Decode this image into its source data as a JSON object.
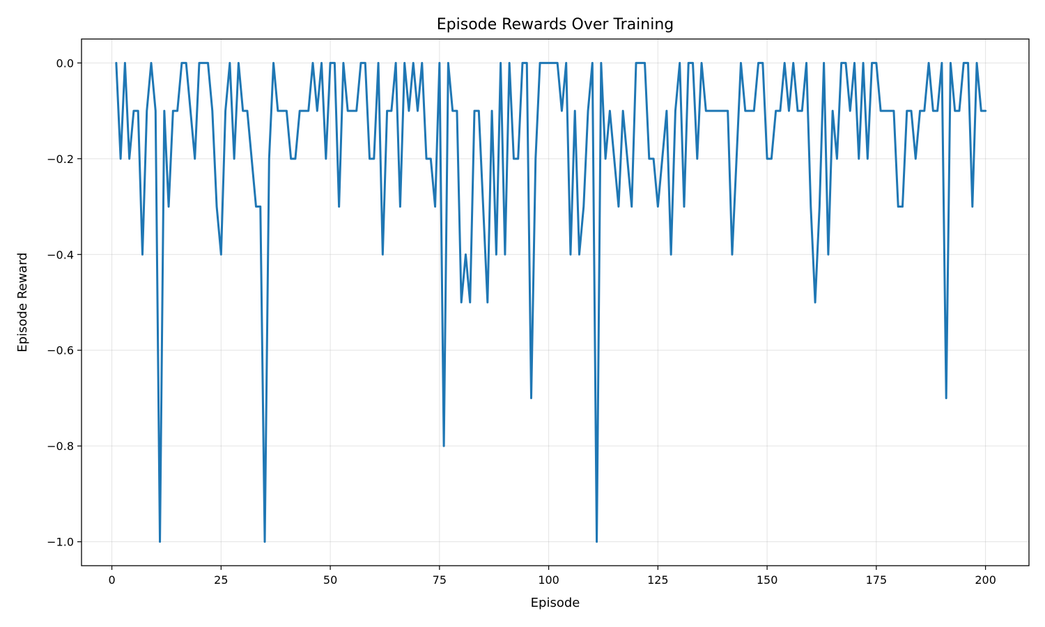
{
  "chart_data": {
    "type": "line",
    "title": "Episode Rewards Over Training",
    "xlabel": "Episode",
    "ylabel": "Episode Reward",
    "xlim": [
      -6.95,
      209.95
    ],
    "ylim": [
      -1.05,
      0.05
    ],
    "xticks": [
      0,
      25,
      50,
      75,
      100,
      125,
      150,
      175,
      200
    ],
    "yticks": [
      0.0,
      -0.2,
      -0.4,
      -0.6,
      -0.8,
      -1.0
    ],
    "xtick_labels": [
      "0",
      "25",
      "50",
      "75",
      "100",
      "125",
      "150",
      "175",
      "200"
    ],
    "ytick_labels": [
      "0.0",
      "−0.2",
      "−0.4",
      "−0.6",
      "−0.8",
      "−1.0"
    ],
    "grid": true,
    "legend": "none",
    "colors": {
      "series": "#1f77b4"
    },
    "series": [
      {
        "x_start": 1,
        "x_step": 1,
        "values": [
          0,
          -0.2,
          0,
          -0.2,
          -0.1,
          -0.1,
          -0.4,
          -0.1,
          0,
          -0.1,
          -1.0,
          -0.1,
          -0.3,
          -0.1,
          -0.1,
          0,
          0,
          -0.1,
          -0.2,
          0,
          0,
          0,
          -0.1,
          -0.3,
          -0.4,
          -0.1,
          0,
          -0.2,
          0,
          -0.1,
          -0.1,
          -0.2,
          -0.3,
          -0.3,
          -1.0,
          -0.2,
          0,
          -0.1,
          -0.1,
          -0.1,
          -0.2,
          -0.2,
          -0.1,
          -0.1,
          -0.1,
          0,
          -0.1,
          0,
          -0.2,
          0,
          0,
          -0.3,
          0,
          -0.1,
          -0.1,
          -0.1,
          0,
          0,
          -0.2,
          -0.2,
          0,
          -0.4,
          -0.1,
          -0.1,
          0,
          -0.3,
          0,
          -0.1,
          0,
          -0.1,
          0,
          -0.2,
          -0.2,
          -0.3,
          0,
          -0.8,
          0,
          -0.1,
          -0.1,
          -0.5,
          -0.4,
          -0.5,
          -0.1,
          -0.1,
          -0.3,
          -0.5,
          -0.1,
          -0.4,
          0,
          -0.4,
          0,
          -0.2,
          -0.2,
          0,
          0,
          -0.7,
          -0.2,
          0,
          0,
          0,
          0,
          0,
          -0.1,
          0,
          -0.4,
          -0.1,
          -0.4,
          -0.3,
          -0.1,
          0,
          -1.0,
          0,
          -0.2,
          -0.1,
          -0.2,
          -0.3,
          -0.1,
          -0.2,
          -0.3,
          0,
          0,
          0,
          -0.2,
          -0.2,
          -0.3,
          -0.2,
          -0.1,
          -0.4,
          -0.1,
          0,
          -0.3,
          0,
          0,
          -0.2,
          0,
          -0.1,
          -0.1,
          -0.1,
          -0.1,
          -0.1,
          -0.1,
          -0.4,
          -0.2,
          0,
          -0.1,
          -0.1,
          -0.1,
          0,
          0,
          -0.2,
          -0.2,
          -0.1,
          -0.1,
          0,
          -0.1,
          0,
          -0.1,
          -0.1,
          0,
          -0.3,
          -0.5,
          -0.3,
          0,
          -0.4,
          -0.1,
          -0.2,
          0,
          0,
          -0.1,
          0,
          -0.2,
          0,
          -0.2,
          0,
          0,
          -0.1,
          -0.1,
          -0.1,
          -0.1,
          -0.3,
          -0.3,
          -0.1,
          -0.1,
          -0.2,
          -0.1,
          -0.1,
          0,
          -0.1,
          -0.1,
          0,
          -0.7,
          0,
          -0.1,
          -0.1,
          0,
          0,
          -0.3,
          0,
          -0.1,
          -0.1
        ]
      }
    ]
  }
}
